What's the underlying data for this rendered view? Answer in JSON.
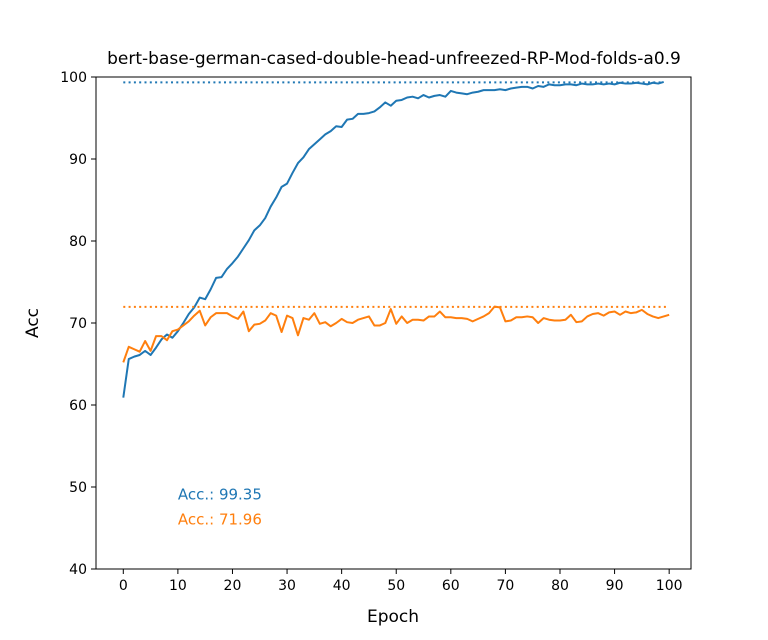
{
  "chart_data": {
    "type": "line",
    "title": "bert-base-german-cased-double-head-unfreezed-RP-Mod-folds-a0.9",
    "xlabel": "Epoch",
    "ylabel": "Acc",
    "xlim": [
      -5,
      104
    ],
    "ylim": [
      40,
      100
    ],
    "xticks": [
      0,
      10,
      20,
      30,
      40,
      50,
      60,
      70,
      80,
      90,
      100
    ],
    "yticks": [
      40,
      50,
      60,
      70,
      80,
      90,
      100
    ],
    "grid": false,
    "series": [
      {
        "color": "#1f77b4",
        "best": 99.35,
        "values": [
          60.9,
          65.6,
          65.9,
          66.1,
          66.6,
          66.1,
          67.0,
          68.0,
          68.6,
          68.2,
          69.0,
          70.0,
          71.1,
          71.9,
          73.1,
          72.9,
          74.1,
          75.5,
          75.6,
          76.6,
          77.3,
          78.1,
          79.1,
          80.1,
          81.3,
          81.9,
          82.8,
          84.2,
          85.3,
          86.6,
          87.0,
          88.3,
          89.5,
          90.2,
          91.2,
          91.8,
          92.4,
          93.0,
          93.4,
          94.0,
          93.9,
          94.8,
          94.9,
          95.5,
          95.5,
          95.6,
          95.8,
          96.3,
          96.9,
          96.5,
          97.1,
          97.2,
          97.5,
          97.6,
          97.4,
          97.8,
          97.5,
          97.7,
          97.8,
          97.6,
          98.3,
          98.1,
          98.0,
          97.9,
          98.1,
          98.2,
          98.4,
          98.4,
          98.4,
          98.5,
          98.4,
          98.6,
          98.7,
          98.8,
          98.8,
          98.6,
          98.9,
          98.8,
          99.1,
          99.0,
          99.0,
          99.1,
          99.1,
          99.0,
          99.2,
          99.1,
          99.1,
          99.2,
          99.1,
          99.2,
          99.1,
          99.3,
          99.2,
          99.2,
          99.3,
          99.2,
          99.1,
          99.3,
          99.2,
          99.4
        ]
      },
      {
        "color": "#ff7f0e",
        "best": 71.96,
        "values": [
          65.2,
          67.1,
          66.8,
          66.5,
          67.8,
          66.6,
          68.4,
          68.4,
          67.9,
          69.0,
          69.2,
          69.7,
          70.2,
          70.9,
          71.5,
          69.7,
          70.7,
          71.2,
          71.2,
          71.2,
          70.8,
          70.5,
          71.4,
          69.0,
          69.8,
          69.9,
          70.3,
          71.2,
          70.9,
          68.9,
          70.9,
          70.6,
          68.5,
          70.6,
          70.4,
          71.2,
          69.9,
          70.1,
          69.6,
          70.0,
          70.5,
          70.1,
          70.0,
          70.4,
          70.6,
          70.8,
          69.7,
          69.7,
          70.0,
          71.7,
          69.9,
          70.8,
          70.0,
          70.4,
          70.4,
          70.3,
          70.8,
          70.8,
          71.4,
          70.7,
          70.7,
          70.6,
          70.6,
          70.5,
          70.2,
          70.5,
          70.8,
          71.2,
          72.0,
          71.9,
          70.2,
          70.3,
          70.7,
          70.7,
          70.8,
          70.7,
          70.0,
          70.6,
          70.4,
          70.3,
          70.3,
          70.4,
          71.0,
          70.1,
          70.2,
          70.8,
          71.1,
          71.2,
          70.9,
          71.3,
          71.4,
          71.0,
          71.4,
          71.2,
          71.3,
          71.6,
          71.1,
          70.8,
          70.6,
          70.8,
          71.0
        ]
      }
    ],
    "annotations": [
      {
        "text": "Acc.: 99.35",
        "x": 10,
        "y": 48.5,
        "color": "#1f77b4"
      },
      {
        "text": "Acc.: 71.96",
        "x": 10,
        "y": 45.4,
        "color": "#ff7f0e"
      }
    ]
  }
}
